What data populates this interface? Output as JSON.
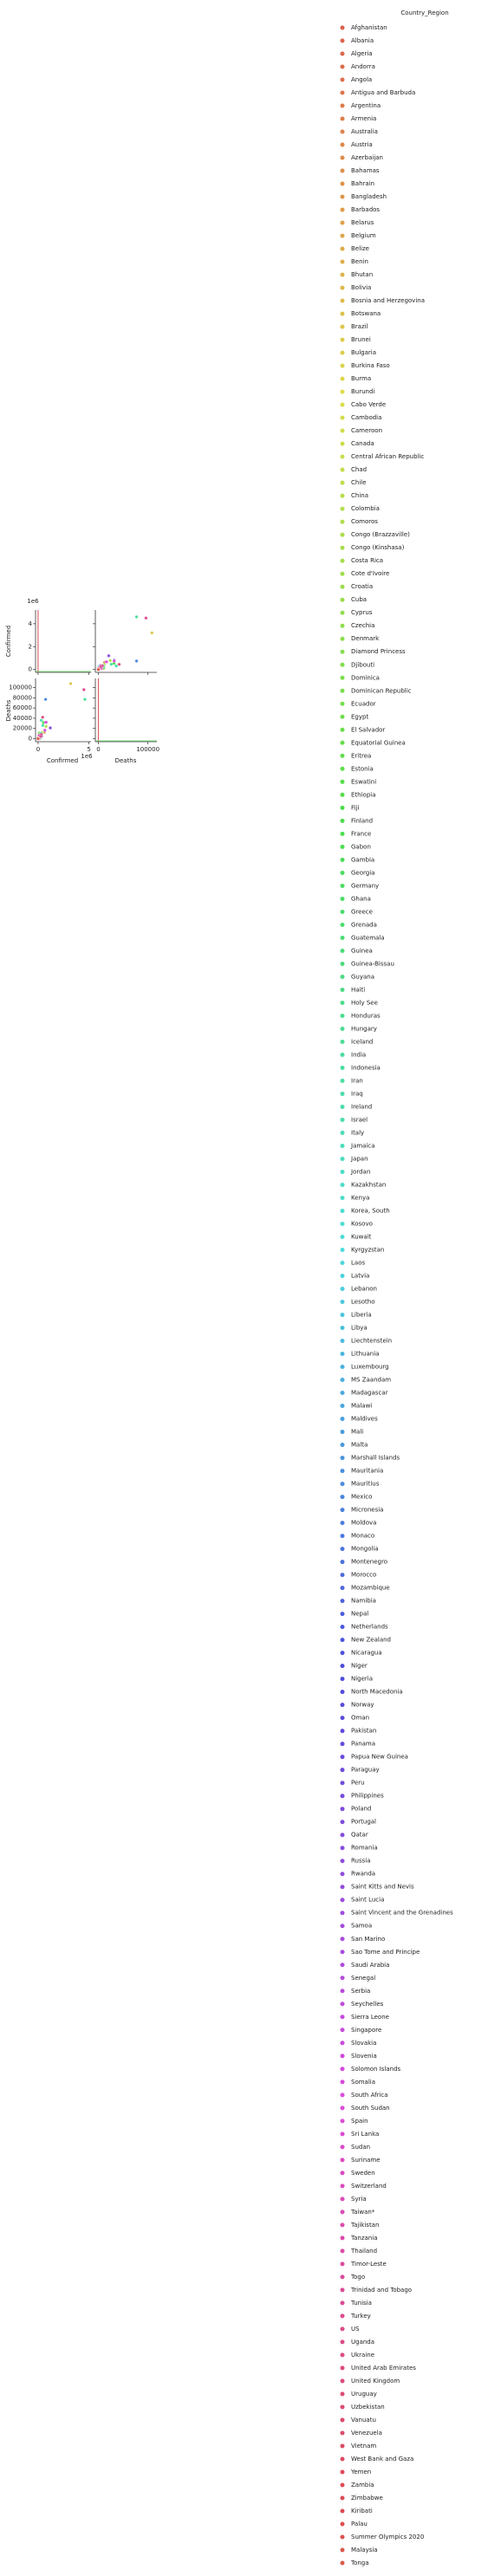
{
  "chart_data": {
    "type": "pairplot",
    "variables": [
      "Confirmed",
      "Deaths"
    ],
    "offset_text": "1e6",
    "legend_title": "Country_Region",
    "palette": "husl",
    "confirmed_lim": [
      -250000,
      5200000
    ],
    "confirmed_ticks": [
      0,
      {
        "value": 2000000,
        "label": "2"
      },
      {
        "value": 4000000,
        "label": "4"
      }
    ],
    "confirmed_xticks": [
      0,
      {
        "value": 5000000,
        "label": "5"
      }
    ],
    "deaths_lim": [
      -6000,
      118000
    ],
    "deaths_ticks": [
      0,
      20000,
      40000,
      60000,
      80000,
      100000
    ],
    "deaths_xticks": [
      0,
      100000
    ],
    "categories": [
      "Afghanistan",
      "Albania",
      "Algeria",
      "Andorra",
      "Angola",
      "Antigua and Barbuda",
      "Argentina",
      "Armenia",
      "Australia",
      "Austria",
      "Azerbaijan",
      "Bahamas",
      "Bahrain",
      "Bangladesh",
      "Barbados",
      "Belarus",
      "Belgium",
      "Belize",
      "Benin",
      "Bhutan",
      "Bolivia",
      "Bosnia and Herzegovina",
      "Botswana",
      "Brazil",
      "Brunei",
      "Bulgaria",
      "Burkina Faso",
      "Burma",
      "Burundi",
      "Cabo Verde",
      "Cambodia",
      "Cameroon",
      "Canada",
      "Central African Republic",
      "Chad",
      "Chile",
      "China",
      "Colombia",
      "Comoros",
      "Congo (Brazzaville)",
      "Congo (Kinshasa)",
      "Costa Rica",
      "Cote d'Ivoire",
      "Croatia",
      "Cuba",
      "Cyprus",
      "Czechia",
      "Denmark",
      "Diamond Princess",
      "Djibouti",
      "Dominica",
      "Dominican Republic",
      "Ecuador",
      "Egypt",
      "El Salvador",
      "Equatorial Guinea",
      "Eritrea",
      "Estonia",
      "Eswatini",
      "Ethiopia",
      "Fiji",
      "Finland",
      "France",
      "Gabon",
      "Gambia",
      "Georgia",
      "Germany",
      "Ghana",
      "Greece",
      "Grenada",
      "Guatemala",
      "Guinea",
      "Guinea-Bissau",
      "Guyana",
      "Haiti",
      "Holy See",
      "Honduras",
      "Hungary",
      "Iceland",
      "India",
      "Indonesia",
      "Iran",
      "Iraq",
      "Ireland",
      "Israel",
      "Italy",
      "Jamaica",
      "Japan",
      "Jordan",
      "Kazakhstan",
      "Kenya",
      "Korea, South",
      "Kosovo",
      "Kuwait",
      "Kyrgyzstan",
      "Laos",
      "Latvia",
      "Lebanon",
      "Lesotho",
      "Liberia",
      "Libya",
      "Liechtenstein",
      "Lithuania",
      "Luxembourg",
      "MS Zaandam",
      "Madagascar",
      "Malawi",
      "Maldives",
      "Mali",
      "Malta",
      "Marshall Islands",
      "Mauritania",
      "Mauritius",
      "Mexico",
      "Micronesia",
      "Moldova",
      "Monaco",
      "Mongolia",
      "Montenegro",
      "Morocco",
      "Mozambique",
      "Namibia",
      "Nepal",
      "Netherlands",
      "New Zealand",
      "Nicaragua",
      "Niger",
      "Nigeria",
      "North Macedonia",
      "Norway",
      "Oman",
      "Pakistan",
      "Panama",
      "Papua New Guinea",
      "Paraguay",
      "Peru",
      "Philippines",
      "Poland",
      "Portugal",
      "Qatar",
      "Romania",
      "Russia",
      "Rwanda",
      "Saint Kitts and Nevis",
      "Saint Lucia",
      "Saint Vincent and the Grenadines",
      "Samoa",
      "San Marino",
      "Sao Tome and Principe",
      "Saudi Arabia",
      "Senegal",
      "Serbia",
      "Seychelles",
      "Sierra Leone",
      "Singapore",
      "Slovakia",
      "Slovenia",
      "Solomon Islands",
      "Somalia",
      "South Africa",
      "South Sudan",
      "Spain",
      "Sri Lanka",
      "Sudan",
      "Suriname",
      "Sweden",
      "Switzerland",
      "Syria",
      "Taiwan*",
      "Tajikistan",
      "Tanzania",
      "Thailand",
      "Timor-Leste",
      "Togo",
      "Trinidad and Tobago",
      "Tunisia",
      "Turkey",
      "US",
      "Uganda",
      "Ukraine",
      "United Arab Emirates",
      "United Kingdom",
      "Uruguay",
      "Uzbekistan",
      "Vanuatu",
      "Venezuela",
      "Vietnam",
      "West Bank and Gaza",
      "Yemen",
      "Zambia",
      "Zimbabwe",
      "Kiribati",
      "Palau",
      "Summer Olympics 2020",
      "Malaysia",
      "Tonga"
    ],
    "confirmed": [
      36000,
      12000,
      45000,
      1800,
      4500,
      95,
      600000,
      50000,
      27000,
      40000,
      40000,
      3500,
      67000,
      340000,
      180,
      75000,
      100000,
      2000,
      2300,
      250,
      130000,
      25000,
      2000,
      3200000,
      150,
      19000,
      1400,
      8000,
      480,
      5800,
      280,
      20000,
      150000,
      4800,
      1100,
      440000,
      90000,
      780000,
      470,
      5000,
      10500,
      70000,
      19000,
      15000,
      5500,
      1600,
      50000,
      25000,
      712,
      5400,
      24,
      110000,
      130000,
      102000,
      28000,
      5000,
      398,
      3000,
      5400,
      75000,
      32,
      9500,
      530000,
      8800,
      3600,
      6000,
      290000,
      46000,
      17000,
      24,
      90000,
      10600,
      2300,
      2600,
      8700,
      12,
      75000,
      24000,
      2500,
      4600000,
      290000,
      460000,
      350000,
      36000,
      240000,
      310000,
      6800,
      83000,
      14000,
      108000,
      38000,
      24000,
      16000,
      106000,
      47000,
      23,
      1900,
      40000,
      1600,
      1340,
      36000,
      120,
      5000,
      9000,
      9,
      16000,
      5800,
      10000,
      3100,
      3000,
      4,
      7500,
      370,
      740000,
      1,
      50000,
      200,
      310,
      11000,
      120000,
      8800,
      11000,
      78000,
      120000,
      1800,
      5200,
      1200,
      58000,
      18000,
      14000,
      98000,
      310000,
      115000,
      530,
      40000,
      810000,
      310000,
      90000,
      75000,
      126000,
      130000,
      1200000,
      4800,
      19,
      29,
      64,
      2,
      730,
      900,
      335000,
      15000,
      33000,
      144,
      2200,
      57000,
      9000,
      4500,
      2,
      3600,
      670000,
      2700,
      750000,
      3400,
      13600,
      4800,
      92000,
      52000,
      4200,
      510,
      10000,
      509,
      3600,
      28,
      1800,
      4500,
      18000,
      320000,
      4500000,
      7800,
      220000,
      90000,
      450000,
      2100,
      57000,
      1,
      75000,
      1090,
      45000,
      2040,
      14700,
      7800,
      0,
      0,
      0,
      11000,
      0
    ],
    "deaths": [
      1300,
      340,
      1500,
      50,
      170,
      3,
      12500,
      1000,
      860,
      750,
      600,
      80,
      230,
      4700,
      7,
      780,
      10000,
      30,
      40,
      0,
      7700,
      760,
      10,
      108000,
      3,
      760,
      55,
      150,
      1,
      60,
      0,
      410,
      9200,
      60,
      80,
      12000,
      4700,
      24000,
      7,
      90,
      270,
      800,
      120,
      300,
      120,
      22,
      500,
      640,
      13,
      61,
      0,
      2100,
      11000,
      5800,
      820,
      83,
      0,
      65,
      108,
      1200,
      2,
      345,
      31500,
      54,
      115,
      35,
      9500,
      300,
      380,
      0,
      3200,
      66,
      39,
      70,
      225,
      0,
      2300,
      740,
      10,
      77000,
      10800,
      26000,
      9000,
      1800,
      1500,
      36000,
      100,
      1500,
      90,
      1700,
      700,
      420,
      600,
      620,
      1060,
      0,
      37,
      370,
      35,
      82,
      570,
      1,
      90,
      125,
      2,
      230,
      180,
      34,
      130,
      36,
      0,
      160,
      10,
      77000,
      0,
      1200,
      2,
      0,
      170,
      2100,
      60,
      120,
      500,
      6300,
      25,
      150,
      69,
      1100,
      730,
      270,
      900,
      6400,
      2400,
      7,
      850,
      32000,
      5500,
      2600,
      1950,
      216,
      4800,
      21000,
      30,
      0,
      0,
      0,
      0,
      42,
      15,
      4800,
      310,
      740,
      0,
      72,
      27,
      40,
      140,
      0,
      100,
      16500,
      50,
      32000,
      13,
      840,
      100,
      5900,
      2000,
      200,
      7,
      78,
      21,
      59,
      0,
      48,
      80,
      250,
      8200,
      96000,
      76,
      4200,
      410,
      42000,
      47,
      470,
      0,
      620,
      35,
      380,
      590,
      330,
      226,
      0,
      0,
      0,
      136,
      0
    ]
  }
}
